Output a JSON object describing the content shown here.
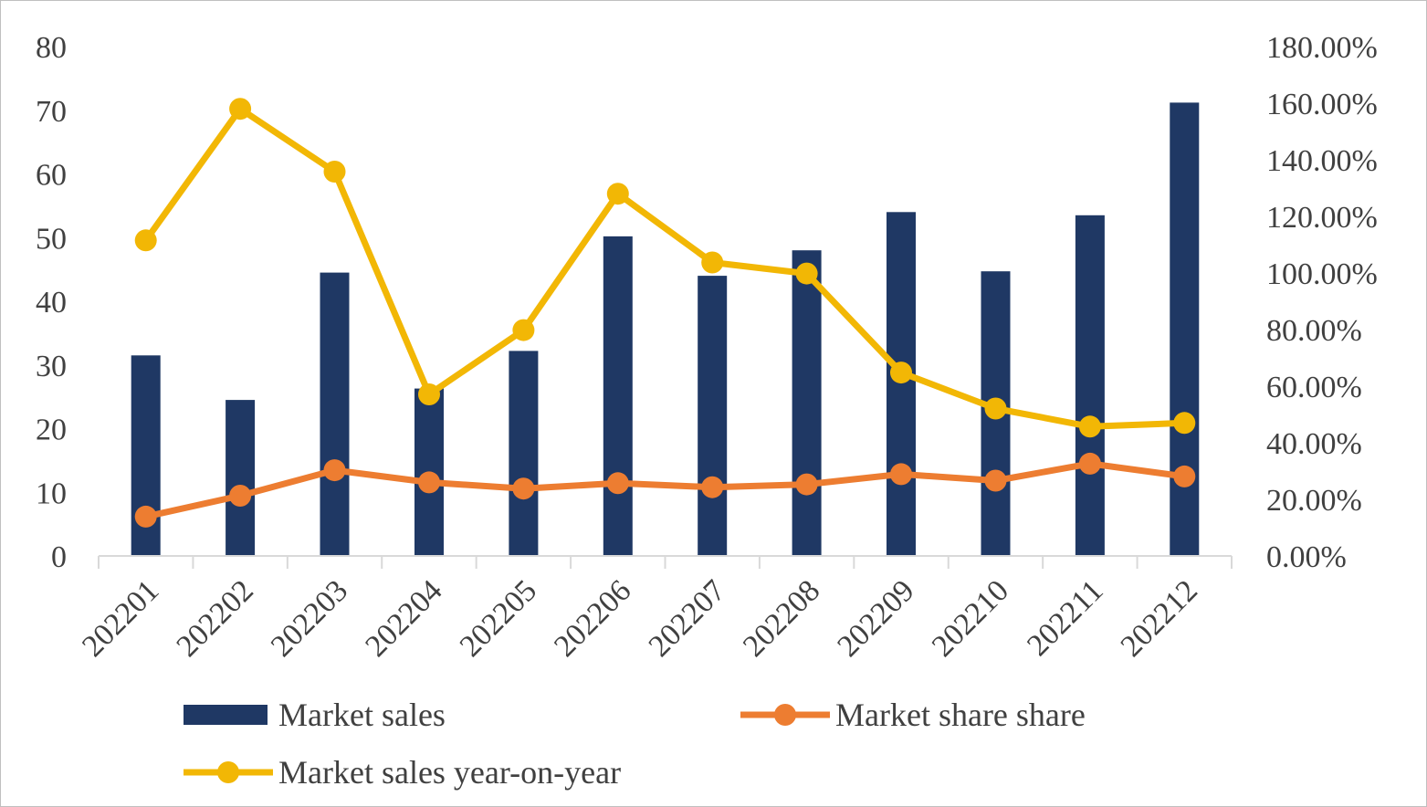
{
  "chart_data": {
    "type": "bar+line",
    "title": "",
    "categories": [
      "202201",
      "202202",
      "202203",
      "202204",
      "202205",
      "202206",
      "202207",
      "202208",
      "202209",
      "202210",
      "202211",
      "202212"
    ],
    "series": [
      {
        "name": "Market sales",
        "kind": "bar",
        "axis": "left",
        "color": "#1f3864",
        "values": [
          31.5,
          24.5,
          44.5,
          26.3,
          32.2,
          50.2,
          44.0,
          48.0,
          54.0,
          44.7,
          53.5,
          71.2
        ]
      },
      {
        "name": "Market share share",
        "kind": "line",
        "axis": "right",
        "color": "#ed7d31",
        "values": [
          13.9,
          21.3,
          30.3,
          26.0,
          23.8,
          25.7,
          24.3,
          25.3,
          28.9,
          26.6,
          32.6,
          28.1
        ]
      },
      {
        "name": "Market sales year-on-year",
        "kind": "line",
        "axis": "right",
        "color": "#f2b705",
        "values": [
          111.5,
          158.0,
          135.8,
          57.1,
          79.8,
          128.0,
          103.7,
          99.8,
          64.8,
          52.1,
          45.7,
          47.0
        ]
      }
    ],
    "y_left": {
      "min": 0,
      "max": 80,
      "step": 10,
      "tick_labels": [
        "0",
        "10",
        "20",
        "30",
        "40",
        "50",
        "60",
        "70",
        "80"
      ]
    },
    "y_right": {
      "min": 0,
      "max": 180,
      "step": 20,
      "tick_labels": [
        "0.00%",
        "20.00%",
        "40.00%",
        "60.00%",
        "80.00%",
        "100.00%",
        "120.00%",
        "140.00%",
        "160.00%",
        "180.00%"
      ]
    },
    "xlabel": "",
    "ylabel": "",
    "grid": false,
    "legend_position": "bottom"
  }
}
